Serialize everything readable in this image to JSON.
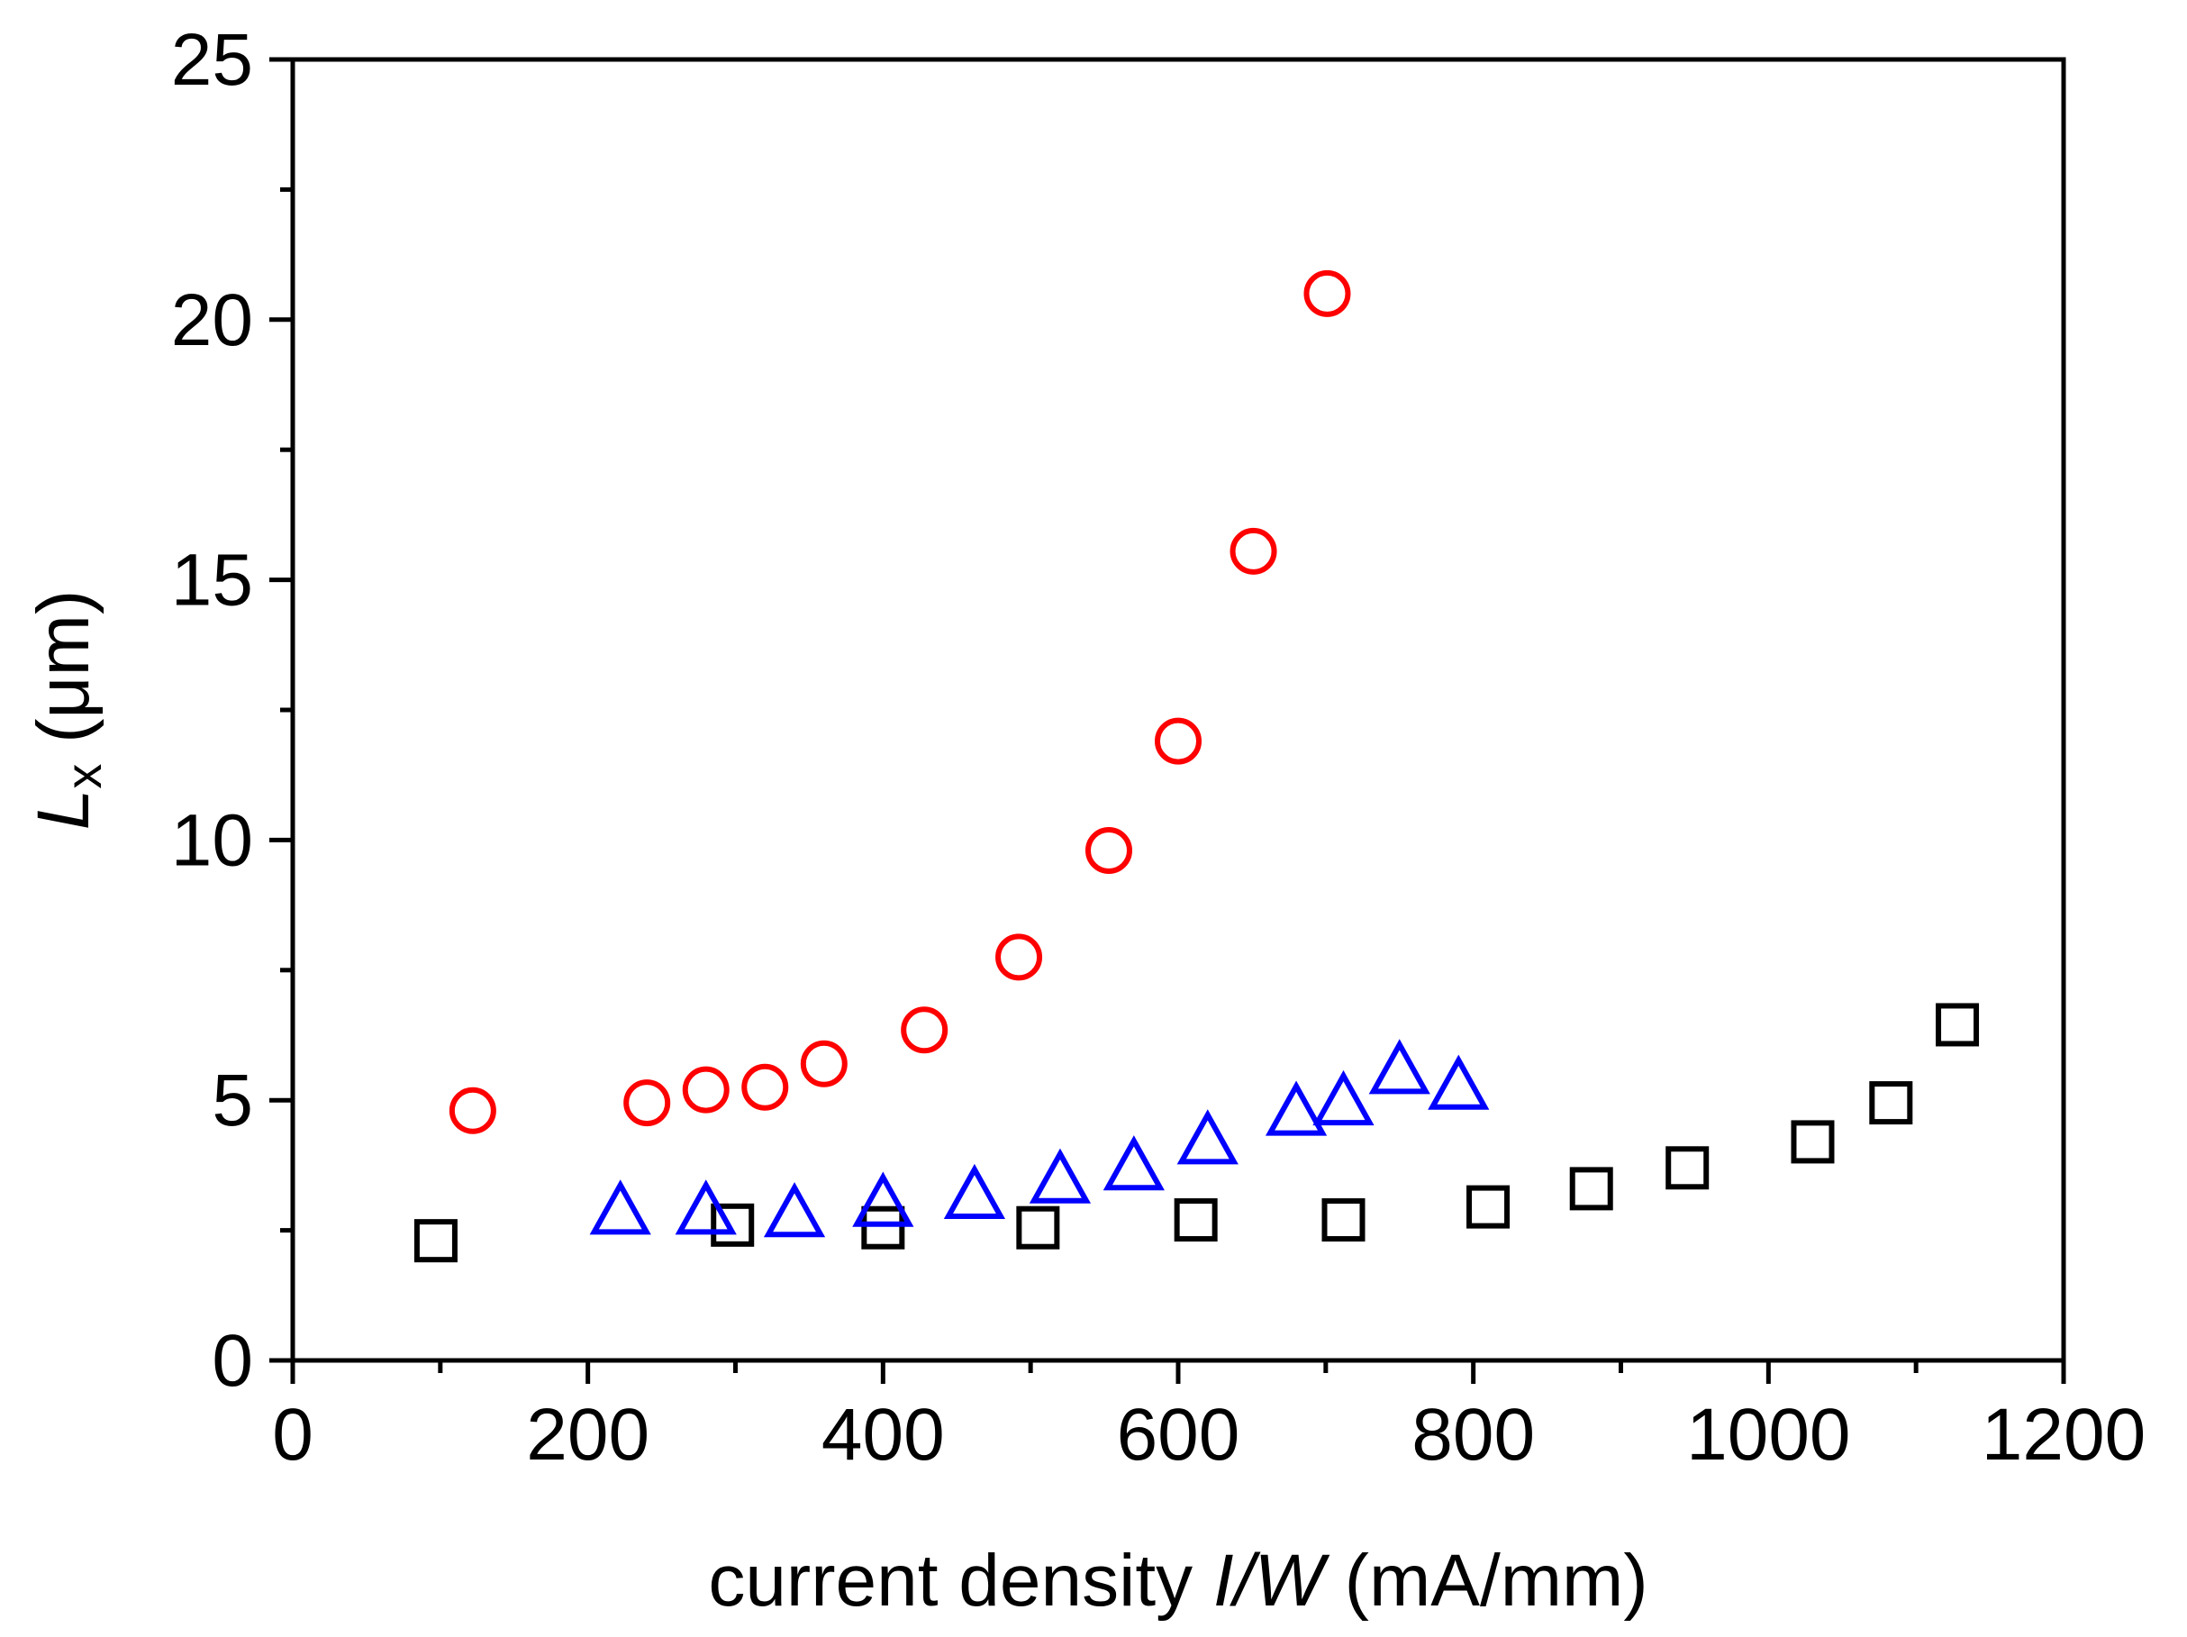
{
  "chart_data": {
    "type": "scatter",
    "title": "",
    "xlabel": {
      "prefix": "current density ",
      "italic": "I/W",
      "suffix": " (mA/mm)"
    },
    "ylabel": {
      "italic": "L",
      "subscript": "x",
      "suffix": " (μm)"
    },
    "xlim": [
      0,
      1200
    ],
    "ylim": [
      0,
      25
    ],
    "xticks": [
      0,
      200,
      400,
      600,
      800,
      1000,
      1200
    ],
    "xtick_labels": [
      "0",
      "200",
      "400",
      "600",
      "800",
      "1000",
      "1200"
    ],
    "xminor": [
      100,
      300,
      500,
      700,
      900,
      1100
    ],
    "yticks": [
      0,
      5,
      10,
      15,
      20,
      25
    ],
    "ytick_labels": [
      "0",
      "5",
      "10",
      "15",
      "20",
      "25"
    ],
    "yminor": [
      2.5,
      7.5,
      12.5,
      17.5,
      22.5
    ],
    "grid": false,
    "legend": "none",
    "series": [
      {
        "name": "squares",
        "marker": "square",
        "color": "#000000",
        "points": [
          [
            97,
            2.3
          ],
          [
            298,
            2.6
          ],
          [
            400,
            2.55
          ],
          [
            505,
            2.55
          ],
          [
            612,
            2.7
          ],
          [
            712,
            2.7
          ],
          [
            810,
            2.95
          ],
          [
            880,
            3.3
          ],
          [
            945,
            3.7
          ],
          [
            1030,
            4.2
          ],
          [
            1083,
            4.95
          ],
          [
            1128,
            6.45
          ]
        ]
      },
      {
        "name": "circles",
        "marker": "circle",
        "color": "#ff0000",
        "points": [
          [
            122,
            4.8
          ],
          [
            240,
            4.95
          ],
          [
            280,
            5.2
          ],
          [
            320,
            5.25
          ],
          [
            360,
            5.7
          ],
          [
            428,
            6.35
          ],
          [
            492,
            7.75
          ],
          [
            553,
            9.8
          ],
          [
            600,
            11.9
          ],
          [
            651,
            15.55
          ],
          [
            701,
            20.5
          ]
        ]
      },
      {
        "name": "triangles",
        "marker": "triangle",
        "color": "#0000ff",
        "points": [
          [
            222,
            2.85
          ],
          [
            280,
            2.85
          ],
          [
            340,
            2.8
          ],
          [
            400,
            3.0
          ],
          [
            462,
            3.15
          ],
          [
            520,
            3.45
          ],
          [
            570,
            3.7
          ],
          [
            620,
            4.2
          ],
          [
            680,
            4.75
          ],
          [
            712,
            4.95
          ],
          [
            750,
            5.55
          ],
          [
            790,
            5.25
          ]
        ]
      }
    ]
  }
}
